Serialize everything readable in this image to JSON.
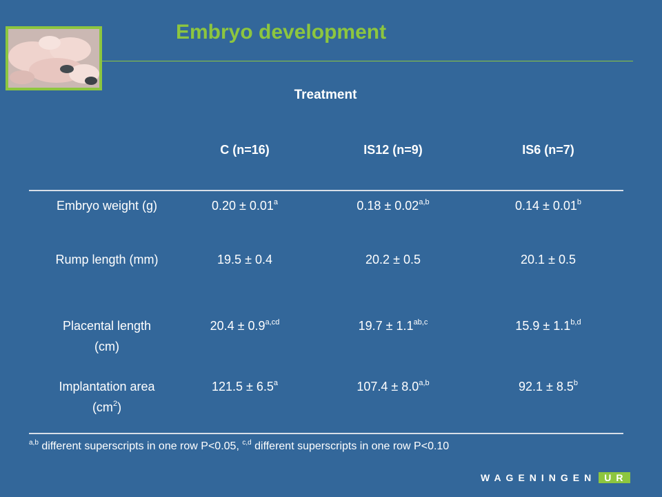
{
  "slide": {
    "title": "Embryo development",
    "treatment_label": "Treatment",
    "photo_icon": "piglets-photo"
  },
  "table": {
    "headers": [
      "C (n=16)",
      "IS12 (n=9)",
      "IS6 (n=7)"
    ],
    "rows": [
      {
        "label": "Embryo weight (g)",
        "cells": [
          {
            "value": "0.20 ± 0.01",
            "sup": "a"
          },
          {
            "value": "0.18 ± 0.02",
            "sup": "a,b"
          },
          {
            "value": "0.14 ± 0.01",
            "sup": "b"
          }
        ]
      },
      {
        "label": "Rump length (mm)",
        "cells": [
          {
            "value": "19.5 ± 0.4",
            "sup": ""
          },
          {
            "value": "20.2 ± 0.5",
            "sup": ""
          },
          {
            "value": "20.1 ± 0.5",
            "sup": ""
          }
        ]
      },
      {
        "label_line1": "Placental length",
        "label_line2": "(cm)",
        "cells": [
          {
            "value": "20.4 ± 0.9",
            "sup": "a,cd"
          },
          {
            "value": "19.7 ± 1.1",
            "sup": "ab,c"
          },
          {
            "value": "15.9 ± 1.1",
            "sup": "b,d"
          }
        ]
      },
      {
        "label_line1": "Implantation area",
        "label_line2_pre": "(cm",
        "label_line2_sup": "2",
        "label_line2_post": ")",
        "cells": [
          {
            "value": "121.5 ± 6.5",
            "sup": "a"
          },
          {
            "value": "107.4 ± 8.0",
            "sup": "a,b"
          },
          {
            "value": "92.1 ± 8.5",
            "sup": "b"
          }
        ]
      }
    ]
  },
  "footnote": {
    "sup1": "a,b",
    "text1": " different superscripts in one row P<0.05,  ",
    "sup2": "c,d",
    "text2": " different superscripts in one row P<0.10"
  },
  "logo": {
    "left": "WAGENINGEN",
    "right": "UR"
  },
  "colors": {
    "background": "#33679a",
    "accent_green": "#8dc63f"
  }
}
